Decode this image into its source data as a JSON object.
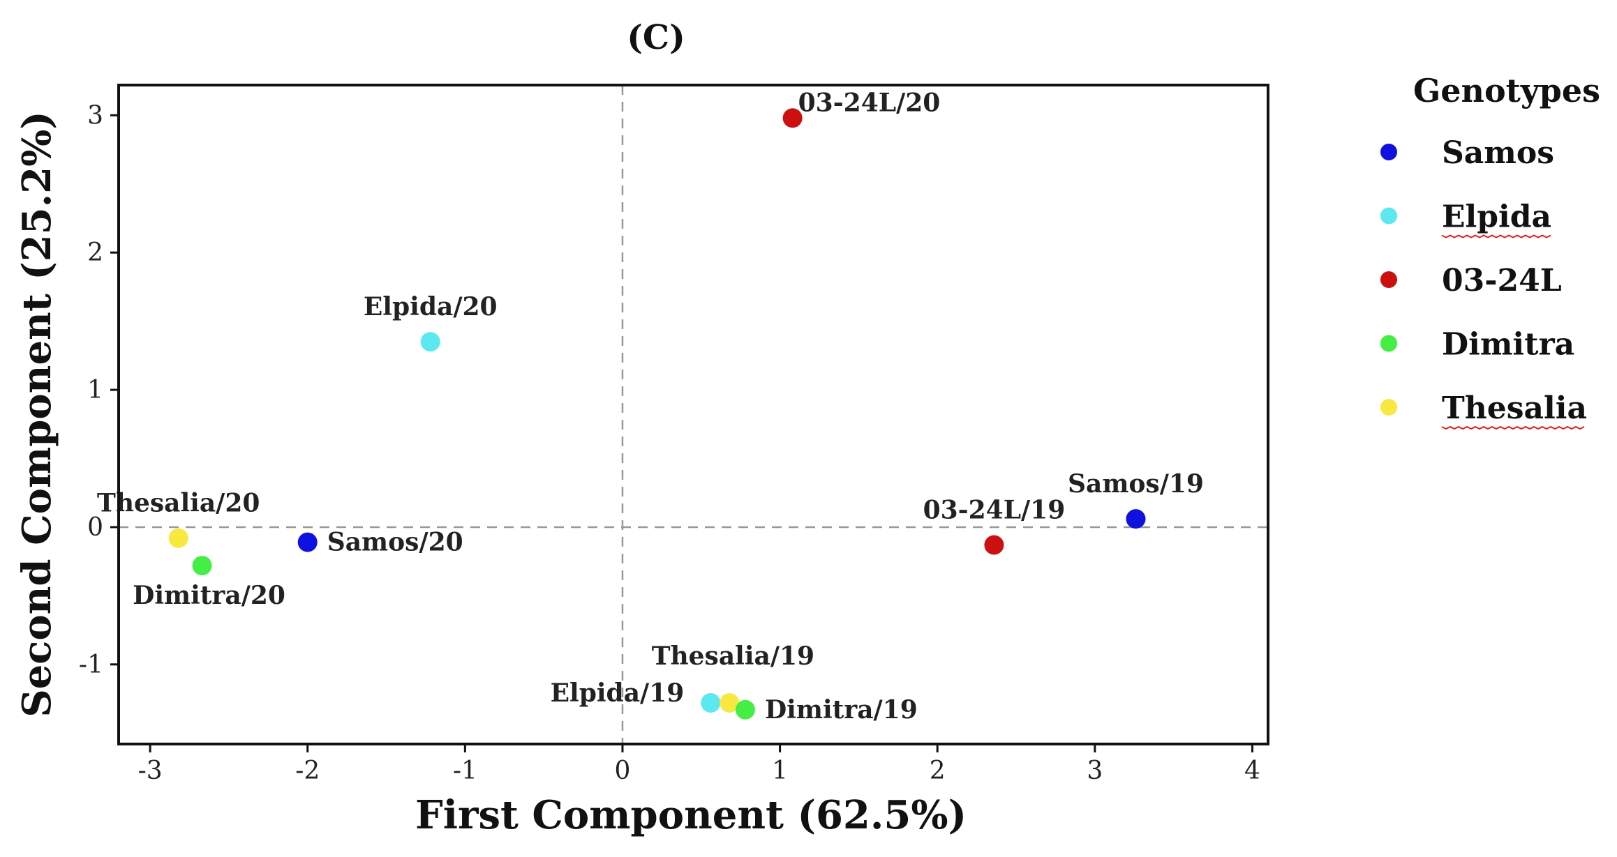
{
  "chart_data": {
    "type": "scatter",
    "title": "(C)",
    "xlabel": "First Component (62.5%)",
    "ylabel": "Second Component (25.2%)",
    "xlim": [
      -3.2,
      4.1
    ],
    "ylim": [
      -1.58,
      3.22
    ],
    "xticks": [
      -3,
      -2,
      -1,
      0,
      1,
      2,
      3,
      4
    ],
    "yticks": [
      -1,
      0,
      1,
      2,
      3
    ],
    "reference_lines": {
      "x": 0,
      "y": 0,
      "style": "dashed"
    },
    "legend": {
      "title": "Genotypes",
      "position": "right",
      "entries": [
        {
          "name": "Samos",
          "color": "#1010e0",
          "underline": false
        },
        {
          "name": "Elpida",
          "color": "#5ce8f0",
          "underline": true
        },
        {
          "name": "03-24L",
          "color": "#cc1010",
          "underline": false
        },
        {
          "name": "Dimitra",
          "color": "#44ee44",
          "underline": false
        },
        {
          "name": "Thesalia",
          "color": "#f8e840",
          "underline": true
        }
      ]
    },
    "points": [
      {
        "label": "03-24L/20",
        "genotype": "03-24L",
        "x": 1.08,
        "y": 2.98,
        "label_pos": "upper-right"
      },
      {
        "label": "Elpida/20",
        "genotype": "Elpida",
        "x": -1.22,
        "y": 1.35,
        "label_pos": "above"
      },
      {
        "label": "Thesalia/20",
        "genotype": "Thesalia",
        "x": -2.82,
        "y": -0.08,
        "label_pos": "above"
      },
      {
        "label": "Dimitra/20",
        "genotype": "Dimitra",
        "x": -2.67,
        "y": -0.28,
        "label_pos": "below"
      },
      {
        "label": "Samos/20",
        "genotype": "Samos",
        "x": -2.0,
        "y": -0.11,
        "label_pos": "right"
      },
      {
        "label": "03-24L/19",
        "genotype": "03-24L",
        "x": 2.36,
        "y": -0.13,
        "label_pos": "above"
      },
      {
        "label": "Samos/19",
        "genotype": "Samos",
        "x": 3.26,
        "y": 0.06,
        "label_pos": "above"
      },
      {
        "label": "Elpida/19",
        "genotype": "Elpida",
        "x": 0.56,
        "y": -1.28,
        "label_pos": "left"
      },
      {
        "label": "Thesalia/19",
        "genotype": "Thesalia",
        "x": 0.68,
        "y": -1.28,
        "label_pos": "above-wide"
      },
      {
        "label": "Dimitra/19",
        "genotype": "Dimitra",
        "x": 0.78,
        "y": -1.33,
        "label_pos": "right"
      }
    ]
  }
}
